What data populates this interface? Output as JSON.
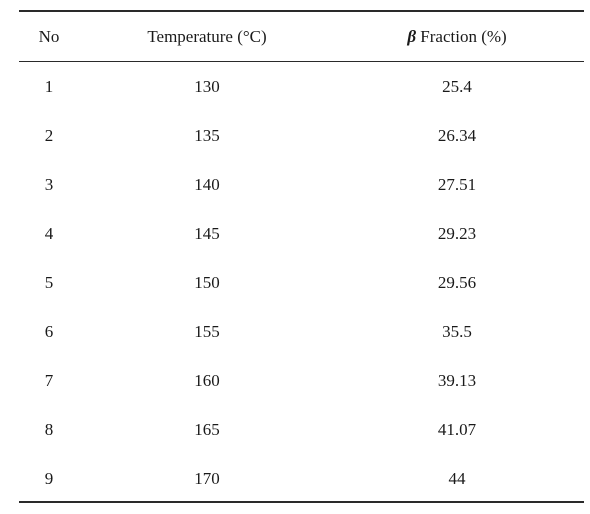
{
  "table": {
    "headers": {
      "no": "No",
      "temperature": "Temperature (°C)",
      "beta_symbol": "β",
      "beta_label": " Fraction (%)"
    },
    "rows": [
      {
        "no": "1",
        "temperature": "130",
        "beta_fraction": "25.4"
      },
      {
        "no": "2",
        "temperature": "135",
        "beta_fraction": "26.34"
      },
      {
        "no": "3",
        "temperature": "140",
        "beta_fraction": "27.51"
      },
      {
        "no": "4",
        "temperature": "145",
        "beta_fraction": "29.23"
      },
      {
        "no": "5",
        "temperature": "150",
        "beta_fraction": "29.56"
      },
      {
        "no": "6",
        "temperature": "155",
        "beta_fraction": "35.5"
      },
      {
        "no": "7",
        "temperature": "160",
        "beta_fraction": "39.13"
      },
      {
        "no": "8",
        "temperature": "165",
        "beta_fraction": "41.07"
      },
      {
        "no": "9",
        "temperature": "170",
        "beta_fraction": "44"
      }
    ]
  }
}
